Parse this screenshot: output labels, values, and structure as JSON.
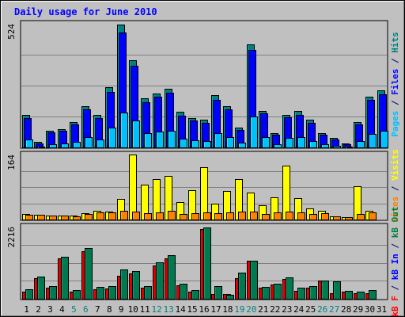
{
  "chart_data": {
    "type": "bar",
    "title": "Daily usage for June 2010",
    "days": [
      "1",
      "2",
      "3",
      "4",
      "5",
      "6",
      "7",
      "8",
      "9",
      "10",
      "11",
      "12",
      "13",
      "14",
      "15",
      "16",
      "17",
      "18",
      "19",
      "20",
      "21",
      "22",
      "23",
      "24",
      "25",
      "26",
      "27",
      "28",
      "29",
      "30",
      "31"
    ],
    "weekend_days": [
      "5",
      "6",
      "12",
      "13",
      "19",
      "20",
      "26",
      "27"
    ],
    "panels": [
      {
        "id": "hits_files_pages",
        "ymax_label": "524",
        "ymax": 524,
        "right_labels": [
          {
            "text": "Pages",
            "color": "#00c0ff"
          },
          {
            "text": " / ",
            "color": "#000080"
          },
          {
            "text": "Files",
            "color": "#0000ff"
          },
          {
            "text": " / ",
            "color": "#000080"
          },
          {
            "text": "Hits",
            "color": "#008080"
          }
        ],
        "series": [
          {
            "name": "Hits",
            "color": "#008080",
            "values": [
              137,
              22,
              72,
              76,
              108,
              175,
              138,
              254,
              519,
              368,
              208,
              229,
              249,
              150,
              125,
              117,
              221,
              173,
              84,
              438,
              156,
              61,
              138,
              153,
              117,
              62,
              39,
              16,
              107,
              215,
              242
            ]
          },
          {
            "name": "Files",
            "color": "#0000ff",
            "values": [
              125,
              17,
              63,
              70,
              97,
              162,
              125,
              236,
              488,
              345,
              190,
              216,
              231,
              134,
              113,
              105,
              203,
              162,
              75,
              413,
              144,
              55,
              127,
              138,
              105,
              54,
              33,
              12,
              98,
              200,
              225
            ]
          },
          {
            "name": "Pages",
            "color": "#00c0ff",
            "values": [
              32,
              3,
              15,
              18,
              24,
              45,
              32,
              85,
              147,
              115,
              60,
              66,
              71,
              38,
              31,
              28,
              62,
              44,
              19,
              131,
              42,
              12,
              39,
              42,
              28,
              14,
              8,
              2,
              26,
              58,
              69
            ]
          }
        ]
      },
      {
        "id": "visits_sites",
        "ymax_label": "164",
        "ymax": 164,
        "right_labels": [
          {
            "text": "Sites",
            "color": "#ff8000"
          },
          {
            "text": " / ",
            "color": "#000080"
          },
          {
            "text": "Visits",
            "color": "#ffff00"
          }
        ],
        "series": [
          {
            "name": "Visits",
            "color": "#ffff00",
            "values": [
              14,
              12,
              11,
              11,
              10,
              17,
              22,
              21,
              53,
              164,
              88,
              102,
              111,
              44,
              74,
              132,
              40,
              72,
              102,
              68,
              36,
              56,
              136,
              55,
              28,
              23,
              9,
              6,
              85,
              22,
              0
            ]
          },
          {
            "name": "Sites",
            "color": "#ff8000",
            "values": [
              13,
              12,
              11,
              10,
              9,
              15,
              18,
              18,
              22,
              20,
              17,
              18,
              22,
              15,
              17,
              19,
              17,
              19,
              20,
              20,
              15,
              18,
              20,
              18,
              15,
              16,
              8,
              6,
              14,
              18,
              0
            ]
          }
        ]
      },
      {
        "id": "kbf_kbin_kbout",
        "ymax_label": "2216",
        "ymax": 2216,
        "right_labels": [
          {
            "text": "kB F",
            "color": "#ff0000"
          },
          {
            "text": " / ",
            "color": "#000080"
          },
          {
            "text": "kB In",
            "color": "#0000ff"
          },
          {
            "text": " / ",
            "color": "#000080"
          },
          {
            "text": "kB Out",
            "color": "#008040"
          }
        ],
        "series": [
          {
            "name": "kB F",
            "color": "#d00000",
            "values": [
              230,
              630,
              340,
              1250,
              220,
              1470,
              300,
              320,
              700,
              790,
              330,
              1030,
              1250,
              420,
              220,
              2140,
              150,
              140,
              630,
              1160,
              330,
              430,
              620,
              250,
              340,
              560,
              160,
              210,
              180,
              180,
              0
            ]
          },
          {
            "name": "kB Out",
            "color": "#007850",
            "values": [
              290,
              690,
              380,
              1300,
              270,
              1550,
              360,
              390,
              910,
              850,
              390,
              1120,
              1330,
              460,
              280,
              2200,
              380,
              110,
              800,
              1170,
              360,
              460,
              650,
              350,
              390,
              560,
              540,
              250,
              230,
              260,
              0
            ]
          }
        ]
      }
    ]
  }
}
